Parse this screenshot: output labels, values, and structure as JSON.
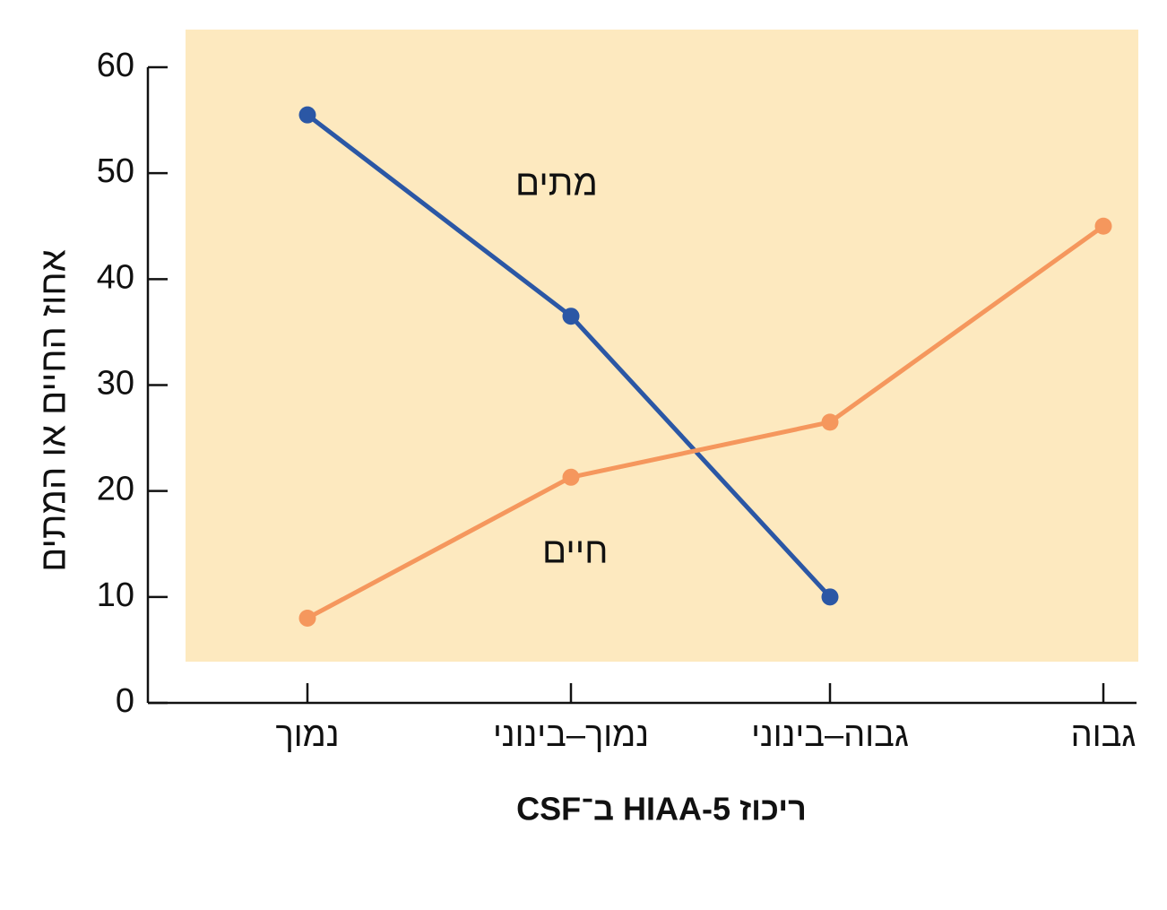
{
  "chart_data": {
    "type": "line",
    "categories": [
      "נמוך",
      "נמוך–בינוני",
      "גבוה–בינוני",
      "גבוה"
    ],
    "series": [
      {
        "name": "מתים",
        "color": "#2b57a5",
        "values": [
          55.5,
          36.5,
          10.0,
          null
        ]
      },
      {
        "name": "חיים",
        "color": "#f5975d",
        "values": [
          8.0,
          21.3,
          26.5,
          45.0
        ]
      }
    ],
    "xlabel": "ריכוז 5-HIAA ב־CSF",
    "ylabel": "אחוז החיים או המתים",
    "ylim": [
      0,
      60
    ],
    "yticks": [
      0,
      10,
      20,
      30,
      40,
      50,
      60
    ],
    "plot_background": "#fde9bf",
    "grid": false,
    "legend": "inline labels"
  }
}
